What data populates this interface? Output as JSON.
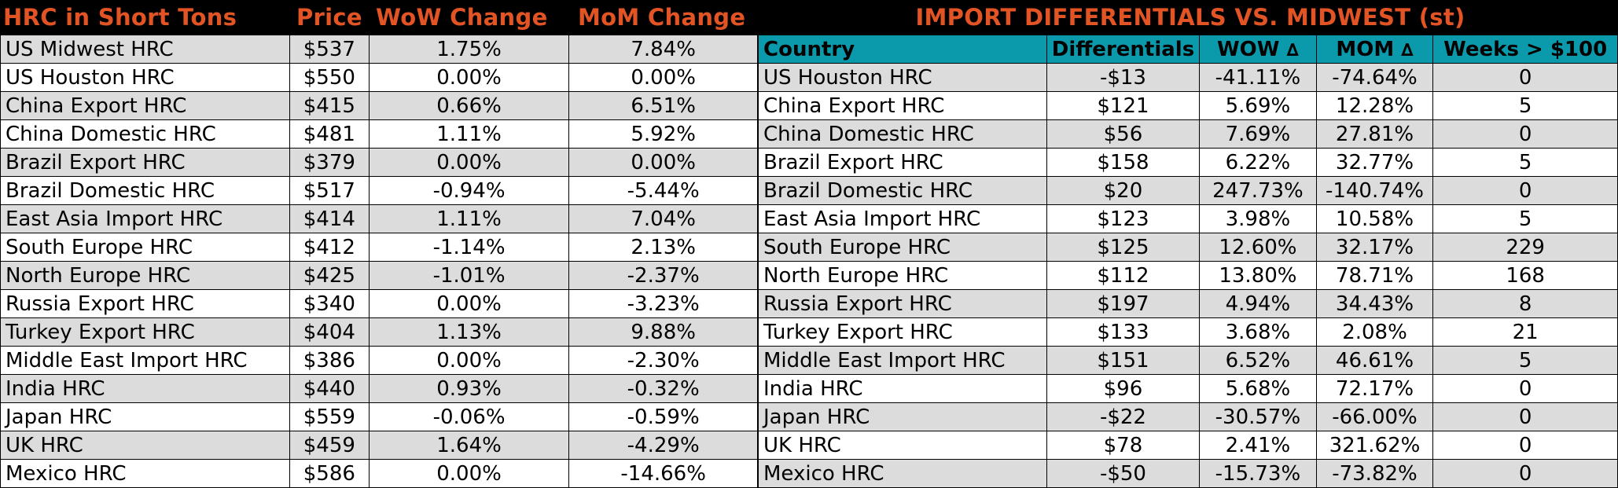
{
  "left": {
    "headers": {
      "name": "HRC in Short Tons",
      "price": "Price",
      "wow": "WoW Change",
      "mom": "MoM Change"
    },
    "rows": [
      {
        "name": "US Midwest HRC",
        "price": "$537",
        "wow": "1.75%",
        "mom": "7.84%"
      },
      {
        "name": "US Houston HRC",
        "price": "$550",
        "wow": "0.00%",
        "mom": "0.00%"
      },
      {
        "name": "China Export HRC",
        "price": "$415",
        "wow": "0.66%",
        "mom": "6.51%"
      },
      {
        "name": "China Domestic HRC",
        "price": "$481",
        "wow": "1.11%",
        "mom": "5.92%"
      },
      {
        "name": "Brazil Export HRC",
        "price": "$379",
        "wow": "0.00%",
        "mom": "0.00%"
      },
      {
        "name": "Brazil Domestic HRC",
        "price": "$517",
        "wow": "-0.94%",
        "mom": "-5.44%"
      },
      {
        "name": "East Asia Import HRC",
        "price": "$414",
        "wow": "1.11%",
        "mom": "7.04%"
      },
      {
        "name": "South Europe HRC",
        "price": "$412",
        "wow": "-1.14%",
        "mom": "2.13%"
      },
      {
        "name": "North Europe HRC",
        "price": "$425",
        "wow": "-1.01%",
        "mom": "-2.37%"
      },
      {
        "name": "Russia Export HRC",
        "price": "$340",
        "wow": "0.00%",
        "mom": "-3.23%"
      },
      {
        "name": "Turkey Export HRC",
        "price": "$404",
        "wow": "1.13%",
        "mom": "9.88%"
      },
      {
        "name": "Middle East Import HRC",
        "price": "$386",
        "wow": "0.00%",
        "mom": "-2.30%"
      },
      {
        "name": "India HRC",
        "price": "$440",
        "wow": "0.93%",
        "mom": "-0.32%"
      },
      {
        "name": "Japan HRC",
        "price": "$559",
        "wow": "-0.06%",
        "mom": "-0.59%"
      },
      {
        "name": "UK HRC",
        "price": "$459",
        "wow": "1.64%",
        "mom": "-4.29%"
      },
      {
        "name": "Mexico HRC",
        "price": "$586",
        "wow": "0.00%",
        "mom": "-14.66%"
      }
    ]
  },
  "right": {
    "title": "IMPORT DIFFERENTIALS VS. MIDWEST (st)",
    "headers": {
      "country": "Country",
      "diff": "Differentials",
      "wow": "WOW",
      "mom": "MOM",
      "delta_symbol": "∆",
      "weeks": "Weeks > $100"
    },
    "rows": [
      {
        "country": "US Houston HRC",
        "diff": "-$13",
        "wow": "-41.11%",
        "mom": "-74.64%",
        "weeks": "0"
      },
      {
        "country": "China Export HRC",
        "diff": "$121",
        "wow": "5.69%",
        "mom": "12.28%",
        "weeks": "5"
      },
      {
        "country": "China Domestic HRC",
        "diff": "$56",
        "wow": "7.69%",
        "mom": "27.81%",
        "weeks": "0"
      },
      {
        "country": "Brazil Export HRC",
        "diff": "$158",
        "wow": "6.22%",
        "mom": "32.77%",
        "weeks": "5"
      },
      {
        "country": "Brazil Domestic HRC",
        "diff": "$20",
        "wow": "247.73%",
        "mom": "-140.74%",
        "weeks": "0"
      },
      {
        "country": "East Asia Import HRC",
        "diff": "$123",
        "wow": "3.98%",
        "mom": "10.58%",
        "weeks": "5"
      },
      {
        "country": "South Europe HRC",
        "diff": "$125",
        "wow": "12.60%",
        "mom": "32.17%",
        "weeks": "229"
      },
      {
        "country": "North Europe HRC",
        "diff": "$112",
        "wow": "13.80%",
        "mom": "78.71%",
        "weeks": "168"
      },
      {
        "country": "Russia Export HRC",
        "diff": "$197",
        "wow": "4.94%",
        "mom": "34.43%",
        "weeks": "8"
      },
      {
        "country": "Turkey Export HRC",
        "diff": "$133",
        "wow": "3.68%",
        "mom": "2.08%",
        "weeks": "21"
      },
      {
        "country": "Middle East Import HRC",
        "diff": "$151",
        "wow": "6.52%",
        "mom": "46.61%",
        "weeks": "5"
      },
      {
        "country": "India HRC",
        "diff": "$96",
        "wow": "5.68%",
        "mom": "72.17%",
        "weeks": "0"
      },
      {
        "country": "Japan HRC",
        "diff": "-$22",
        "wow": "-30.57%",
        "mom": "-66.00%",
        "weeks": "0"
      },
      {
        "country": "UK HRC",
        "diff": "$78",
        "wow": "2.41%",
        "mom": "321.62%",
        "weeks": "0"
      },
      {
        "country": "Mexico HRC",
        "diff": "-$50",
        "wow": "-15.73%",
        "mom": "-73.82%",
        "weeks": "0"
      }
    ]
  },
  "colors": {
    "title_text": "#e35424",
    "title_background": "#000000",
    "header_teal": "#0b9aab",
    "row_shade": "#dcdcdc"
  }
}
